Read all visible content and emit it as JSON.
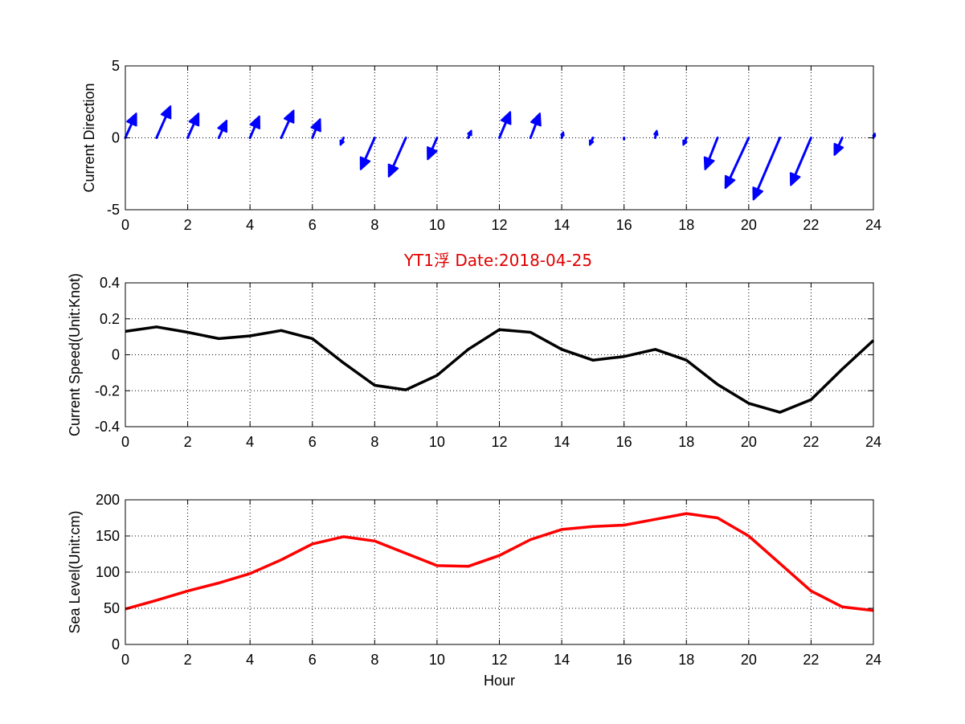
{
  "title": {
    "text": "YT1浮   Date:2018-04-25",
    "color": "#e00000"
  },
  "colors": {
    "direction": "#0000ff",
    "speed": "#000000",
    "sea_level": "#ff0000",
    "grid": "#000000"
  },
  "chart_data": [
    {
      "type": "quiver",
      "ylabel": "Current Direction",
      "xlim": [
        0,
        24
      ],
      "ylim": [
        -5,
        5
      ],
      "xticks": [
        0,
        2,
        4,
        6,
        8,
        10,
        12,
        14,
        16,
        18,
        20,
        22,
        24
      ],
      "yticks": [
        -5,
        0,
        5
      ],
      "grid": true,
      "x": [
        0,
        1,
        2,
        3,
        4,
        5,
        6,
        7,
        8,
        9,
        10,
        11,
        12,
        13,
        14,
        15,
        16,
        17,
        18,
        19,
        20,
        21,
        22,
        23,
        24
      ],
      "u": [
        0.35,
        0.45,
        0.35,
        0.25,
        0.3,
        0.4,
        0.25,
        -0.1,
        -0.45,
        -0.55,
        -0.3,
        0.1,
        0.35,
        0.3,
        0.05,
        -0.1,
        0,
        0.05,
        -0.1,
        -0.4,
        -0.75,
        -0.85,
        -0.65,
        -0.25,
        0.05
      ],
      "v": [
        1.7,
        2.2,
        1.7,
        1.2,
        1.5,
        1.9,
        1.3,
        -0.5,
        -2.2,
        -2.7,
        -1.5,
        0.5,
        1.8,
        1.7,
        0.4,
        -0.5,
        -0.1,
        0.5,
        -0.5,
        -2.2,
        -3.5,
        -4.3,
        -3.3,
        -1.2,
        0.3
      ],
      "arrow_style": "filled-head"
    },
    {
      "type": "line",
      "ylabel": "Current Speed(Unit:Knot)",
      "xlim": [
        0,
        24
      ],
      "ylim": [
        -0.4,
        0.4
      ],
      "xticks": [
        0,
        2,
        4,
        6,
        8,
        10,
        12,
        14,
        16,
        18,
        20,
        22,
        24
      ],
      "yticks": [
        -0.4,
        -0.2,
        0,
        0.2,
        0.4
      ],
      "grid": true,
      "x": [
        0,
        1,
        2,
        3,
        4,
        5,
        6,
        7,
        8,
        9,
        10,
        11,
        12,
        13,
        14,
        15,
        16,
        17,
        18,
        19,
        20,
        21,
        22,
        23,
        24
      ],
      "y": [
        0.13,
        0.155,
        0.125,
        0.09,
        0.105,
        0.135,
        0.09,
        -0.045,
        -0.17,
        -0.195,
        -0.115,
        0.03,
        0.14,
        0.125,
        0.03,
        -0.03,
        -0.01,
        0.03,
        -0.03,
        -0.165,
        -0.27,
        -0.32,
        -0.25,
        -0.08,
        0.08
      ]
    },
    {
      "type": "line",
      "ylabel": "Sea Level(Unit:cm)",
      "xlabel": "Hour",
      "xlim": [
        0,
        24
      ],
      "ylim": [
        0,
        200
      ],
      "xticks": [
        0,
        2,
        4,
        6,
        8,
        10,
        12,
        14,
        16,
        18,
        20,
        22,
        24
      ],
      "yticks": [
        0,
        50,
        100,
        150,
        200
      ],
      "grid": true,
      "x": [
        0,
        1,
        2,
        3,
        4,
        5,
        6,
        7,
        8,
        9,
        10,
        11,
        12,
        13,
        14,
        15,
        16,
        17,
        18,
        19,
        20,
        21,
        22,
        23,
        24
      ],
      "y": [
        49,
        61,
        74,
        85,
        98,
        117,
        139,
        149,
        143,
        126,
        109,
        108,
        123,
        145,
        159,
        163,
        165,
        173,
        181,
        175,
        150,
        112,
        74,
        52,
        47
      ]
    }
  ]
}
